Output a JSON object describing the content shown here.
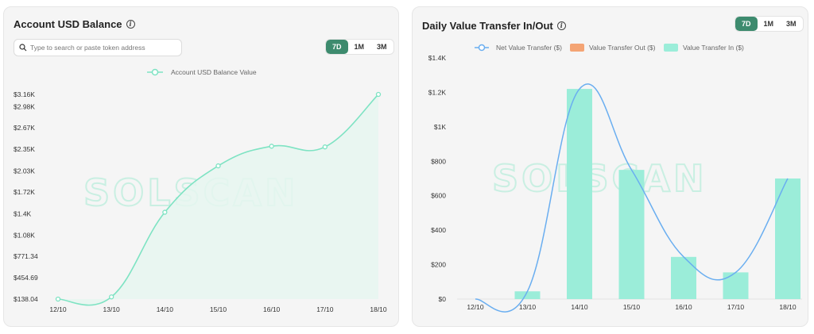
{
  "left_card": {
    "title": "Account USD Balance",
    "info_icon": "info-icon",
    "search": {
      "placeholder": "Type to search or paste token address",
      "icon": "search-icon"
    },
    "ranges": [
      "7D",
      "1M",
      "3M"
    ],
    "active_range": "7D",
    "watermark": "SOLSCAN"
  },
  "right_card": {
    "title": "Daily Value Transfer In/Out",
    "info_icon": "info-icon",
    "ranges": [
      "7D",
      "1M",
      "3M"
    ],
    "active_range": "7D",
    "watermark": "SOLSCAN"
  },
  "colors": {
    "accent": "#3d8b6e",
    "balance_line": "#7ee3c3",
    "transfer_in": "#9bedd9",
    "transfer_out": "#f4a474",
    "net_line": "#6aaef0"
  },
  "chart_data": [
    {
      "type": "area",
      "legend": [
        "Account USD Balance Value"
      ],
      "categories": [
        "12/10",
        "13/10",
        "14/10",
        "15/10",
        "16/10",
        "17/10",
        "18/10"
      ],
      "series": [
        {
          "name": "Account USD Balance Value",
          "values": [
            138.04,
            170,
            1420,
            2105,
            2395,
            2385,
            3160
          ]
        }
      ],
      "y_ticks": [
        "$138.04",
        "$454.69",
        "$771.34",
        "$1.08K",
        "$1.4K",
        "$1.72K",
        "$2.03K",
        "$2.35K",
        "$2.67K",
        "$2.98K",
        "$3.16K"
      ],
      "y_tick_values": [
        138.04,
        454.69,
        771.34,
        1080,
        1400,
        1720,
        2030,
        2350,
        2670,
        2980,
        3160
      ],
      "ylim": [
        138.04,
        3160
      ],
      "legend_position": "top-center"
    },
    {
      "type": "bar",
      "legend": [
        "Net Value Transfer ($)",
        "Value Transfer Out ($)",
        "Value Transfer In ($)"
      ],
      "categories": [
        "12/10",
        "13/10",
        "14/10",
        "15/10",
        "16/10",
        "17/10",
        "18/10"
      ],
      "series": [
        {
          "name": "Value Transfer In ($)",
          "values": [
            0,
            45,
            1220,
            750,
            245,
            155,
            700
          ]
        },
        {
          "name": "Value Transfer Out ($)",
          "values": [
            0,
            0,
            0,
            0,
            0,
            0,
            0
          ]
        },
        {
          "name": "Net Value Transfer ($)",
          "values": [
            0,
            45,
            1220,
            750,
            245,
            155,
            700
          ]
        }
      ],
      "y_ticks": [
        "$0",
        "$200",
        "$400",
        "$600",
        "$800",
        "$1K",
        "$1.2K",
        "$1.4K"
      ],
      "ylim": [
        0,
        1400
      ],
      "legend_position": "top-center"
    }
  ]
}
